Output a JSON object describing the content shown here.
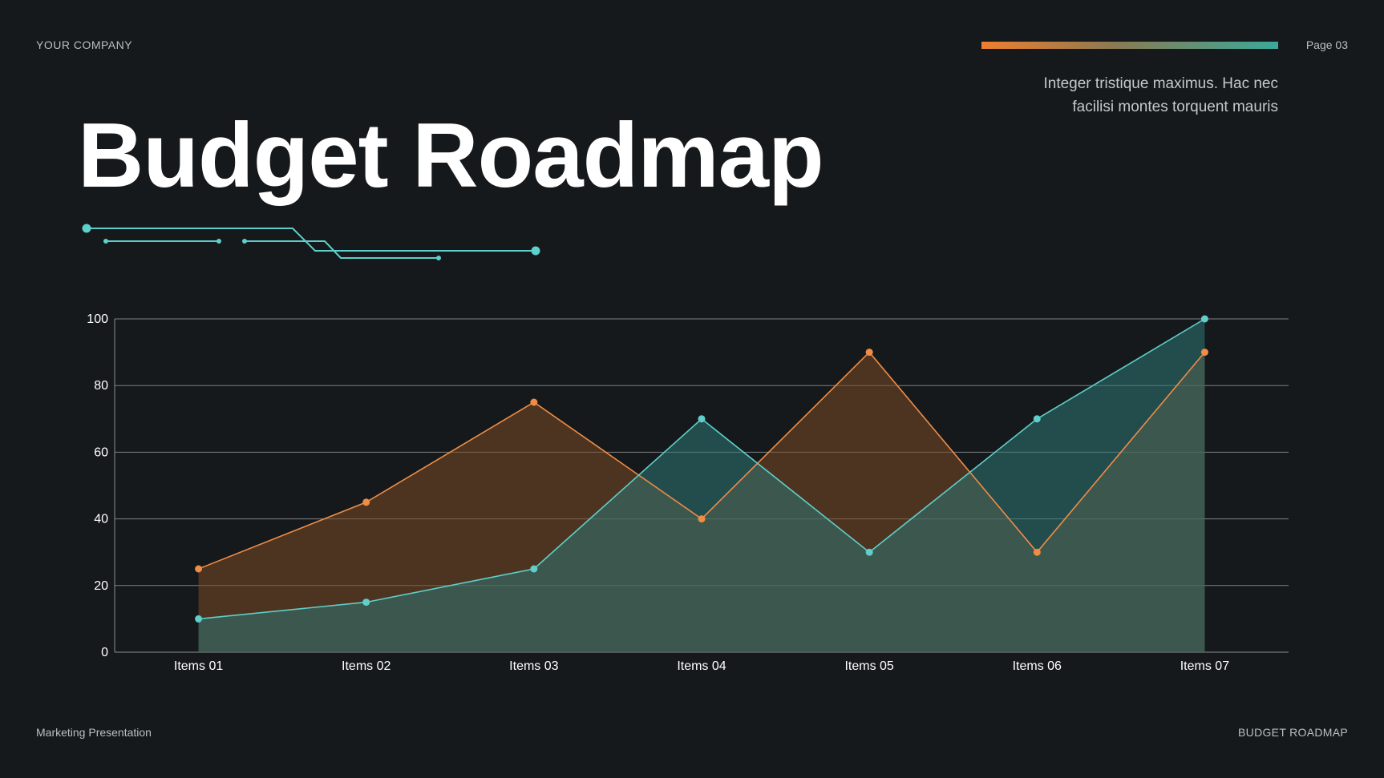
{
  "header": {
    "company": "YOUR COMPANY",
    "page": "Page 03",
    "tagline_line1": "Integer tristique maximus. Hac nec",
    "tagline_line2": "facilisi montes torquent mauris"
  },
  "title": "Budget Roadmap",
  "footer": {
    "left": "Marketing Presentation",
    "right": "BUDGET ROADMAP"
  },
  "colors": {
    "background": "#16191b",
    "accent_orange": "#ef8c45",
    "accent_teal": "#5ecfcb"
  },
  "chart_data": {
    "type": "area",
    "categories": [
      "Items 01",
      "Items 02",
      "Items 03",
      "Items 04",
      "Items 05",
      "Items 06",
      "Items 07"
    ],
    "series": [
      {
        "color": "#ef8c45",
        "fill": "#7a4a26",
        "values": [
          25,
          45,
          75,
          40,
          90,
          30,
          90
        ]
      },
      {
        "color": "#5ecfcb",
        "fill": "#2f7775",
        "values": [
          10,
          15,
          25,
          70,
          30,
          70,
          100
        ]
      }
    ],
    "ylim": [
      0,
      100
    ],
    "yticks": [
      0,
      20,
      40,
      60,
      80,
      100
    ],
    "grid": true,
    "title": "",
    "xlabel": "",
    "ylabel": ""
  }
}
